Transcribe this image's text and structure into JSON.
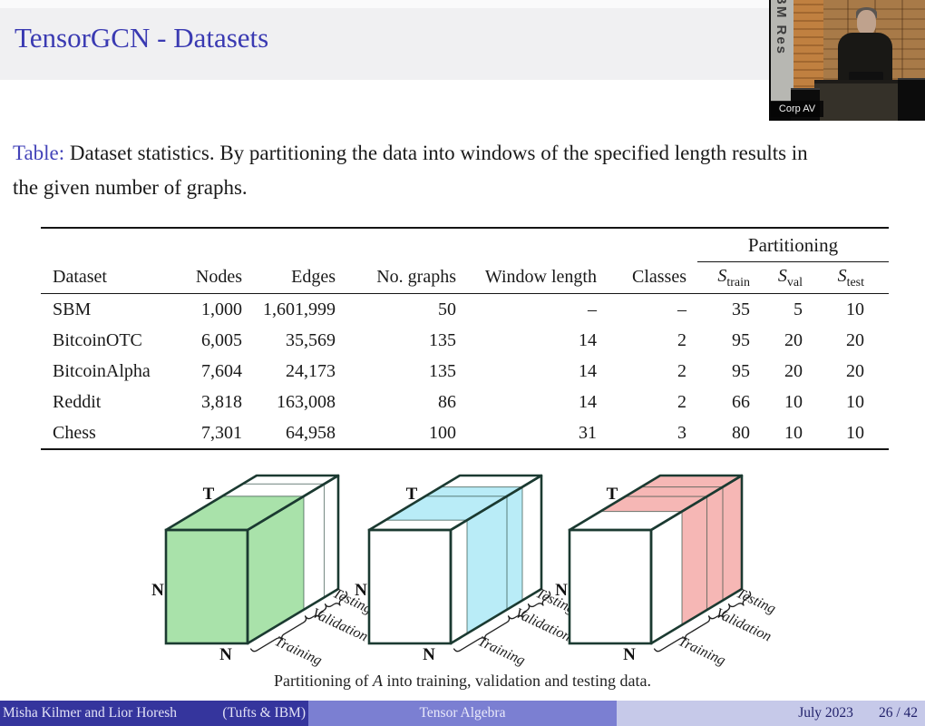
{
  "slide": {
    "title": "TensorGCN - Datasets"
  },
  "webcam": {
    "banner_text": "BM Res",
    "corp_label": "Corp AV"
  },
  "caption": {
    "label": "Table:",
    "lines": [
      "Dataset statistics. By partitioning the data into windows of the specified length results in",
      "the given number of graphs."
    ]
  },
  "table": {
    "partitioning_label": "Partitioning",
    "headers": [
      "Dataset",
      "Nodes",
      "Edges",
      "No. graphs",
      "Window length",
      "Classes"
    ],
    "sub_headers": [
      {
        "base": "S",
        "sub": "train"
      },
      {
        "base": "S",
        "sub": "val"
      },
      {
        "base": "S",
        "sub": "test"
      }
    ],
    "rows": [
      [
        "SBM",
        "1,000",
        "1,601,999",
        "50",
        "–",
        "–",
        "35",
        "5",
        "10"
      ],
      [
        "BitcoinOTC",
        "6,005",
        "35,569",
        "135",
        "14",
        "2",
        "95",
        "20",
        "20"
      ],
      [
        "BitcoinAlpha",
        "7,604",
        "24,173",
        "135",
        "14",
        "2",
        "95",
        "20",
        "20"
      ],
      [
        "Reddit",
        "3,818",
        "163,008",
        "86",
        "14",
        "2",
        "66",
        "10",
        "10"
      ],
      [
        "Chess",
        "7,301",
        "64,958",
        "100",
        "31",
        "3",
        "80",
        "10",
        "10"
      ]
    ]
  },
  "figure": {
    "axis_labels": {
      "depth": "T",
      "height": "N",
      "width": "N"
    },
    "brace_labels": [
      "Training",
      "Validation",
      "Testing"
    ],
    "cubes": [
      {
        "name": "training-highlighted",
        "color": "#a9e2aa",
        "front_filled": true,
        "fill_from": 0,
        "fill_to": 0.62,
        "dividers": [
          0.62,
          0.845
        ]
      },
      {
        "name": "validation-highlighted",
        "color": "#b9ecf7",
        "front_filled": false,
        "fill_from": 0.18,
        "fill_to": 0.79,
        "dividers": [
          0.18,
          0.62,
          0.79
        ]
      },
      {
        "name": "testing-highlighted",
        "color": "#f6b7b5",
        "front_filled": false,
        "fill_from": 0.34,
        "fill_to": 1,
        "dividers": [
          0.34,
          0.615,
          0.79
        ]
      }
    ],
    "caption_pre": "Partitioning of ",
    "caption_math": "A",
    "caption_post": " into training, validation and testing data."
  },
  "footer": {
    "authors": "Misha Kilmer and Lior Horesh",
    "affiliation": "(Tufts & IBM)",
    "center_title": "Tensor Algebra",
    "date": "July 2023",
    "page": "26 / 42"
  }
}
